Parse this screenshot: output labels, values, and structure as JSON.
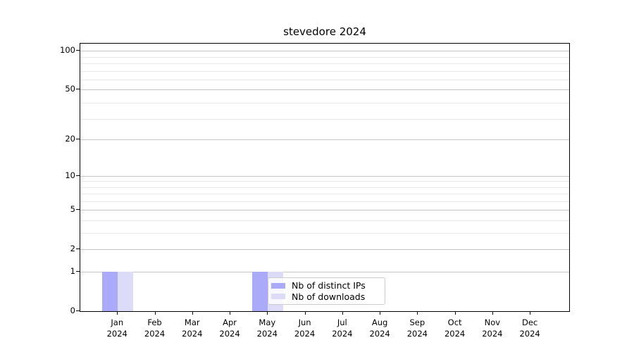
{
  "chart_data": {
    "type": "bar",
    "title": "stevedore 2024",
    "categories": [
      "Jan",
      "Feb",
      "Mar",
      "Apr",
      "May",
      "Jun",
      "Jul",
      "Aug",
      "Sep",
      "Oct",
      "Nov",
      "Dec"
    ],
    "category_year": "2024",
    "series": [
      {
        "name": "Nb of distinct IPs",
        "color": "#abaaf8",
        "values": [
          1,
          0,
          0,
          0,
          1,
          0,
          0,
          0,
          0,
          0,
          0,
          0
        ]
      },
      {
        "name": "Nb of downloads",
        "color": "#dcdcf9",
        "values": [
          1,
          0,
          0,
          0,
          1,
          0,
          0,
          0,
          0,
          0,
          0,
          0
        ]
      }
    ],
    "yscale": "log10(value+1)",
    "yticks": [
      0,
      1,
      2,
      5,
      10,
      20,
      50,
      100
    ],
    "yminor": [
      3,
      4,
      6,
      7,
      8,
      9,
      29,
      39,
      59,
      69,
      79,
      89
    ],
    "ylim": [
      0,
      113
    ],
    "grid": true,
    "legend": {
      "position": "lower center"
    },
    "colors": {
      "grid_major": "#c6c6c6",
      "grid_minor": "#eaeaea",
      "spine": "#000000",
      "text": "#000000",
      "legend_border": "#cccccc"
    }
  }
}
